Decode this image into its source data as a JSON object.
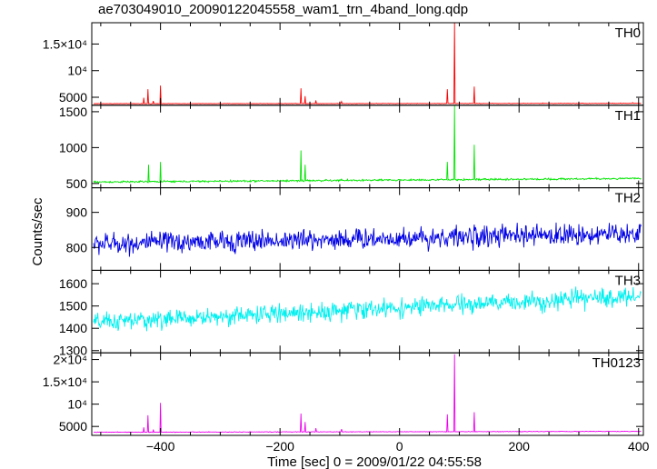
{
  "figure_title": "ae703049010_20090122045558_wam1_trn_4band_long.qdp",
  "chart_data": {
    "type": "line",
    "title": "ae703049010_20090122045558_wam1_trn_4band_long.qdp",
    "xlabel": "Time [sec] 0 = 2009/01/22 04:55:58",
    "ylabel": "Counts/sec",
    "xlim": [
      -515,
      408
    ],
    "x_ticks": [
      -400,
      -200,
      0,
      200,
      400
    ],
    "x_tick_labels": [
      "−400",
      "−200",
      "0",
      "200",
      "400"
    ],
    "grid": false,
    "x_step_sec": 1,
    "panels": [
      {
        "name": "TH0",
        "color": "#ff0000",
        "ylim": [
          3500,
          19000
        ],
        "y_ticks": [
          5000,
          10000,
          15000
        ],
        "y_tick_labels": [
          "5000",
          "10⁴",
          "1.5×10⁴"
        ],
        "baseline": {
          "start": 3800,
          "end": 3860,
          "noise": 40
        },
        "spikes": [
          [
            -428,
            4900
          ],
          [
            -421,
            6500
          ],
          [
            -412,
            4300
          ],
          [
            -400,
            7200
          ],
          [
            -165,
            6700
          ],
          [
            -158,
            5200
          ],
          [
            -140,
            4400
          ],
          [
            -97,
            4200
          ],
          [
            80,
            6500
          ],
          [
            92,
            19000
          ],
          [
            125,
            7000
          ],
          [
            240,
            3950
          ],
          [
            300,
            3950
          ],
          [
            390,
            4000
          ]
        ]
      },
      {
        "name": "TH1",
        "color": "#00e600",
        "ylim": [
          440,
          1590
        ],
        "y_ticks": [
          500,
          1000,
          1500
        ],
        "y_tick_labels": [
          "500",
          "1000",
          "1500"
        ],
        "baseline": {
          "start": 520,
          "end": 570,
          "noise": 12
        },
        "spikes": [
          [
            -420,
            760
          ],
          [
            -400,
            800
          ],
          [
            -165,
            960
          ],
          [
            -158,
            760
          ],
          [
            -97,
            560
          ],
          [
            80,
            800
          ],
          [
            92,
            1590
          ],
          [
            125,
            1040
          ]
        ]
      },
      {
        "name": "TH2",
        "color": "#0000e6",
        "ylim": [
          735,
          970
        ],
        "y_ticks": [
          800,
          900
        ],
        "y_tick_labels": [
          "800",
          "900"
        ],
        "baseline": {
          "start": 810,
          "end": 840,
          "noise": 28
        },
        "spikes": []
      },
      {
        "name": "TH3",
        "color": "#00f0f0",
        "ylim": [
          1290,
          1660
        ],
        "y_ticks": [
          1300,
          1400,
          1500,
          1600
        ],
        "y_tick_labels": [
          "1300",
          "1400",
          "1500",
          "1600"
        ],
        "baseline": {
          "start": 1425,
          "end": 1545,
          "noise": 38
        },
        "spikes": []
      },
      {
        "name": "TH0123",
        "color": "#ee00ee",
        "ylim": [
          3000,
          21500
        ],
        "y_ticks": [
          5000,
          10000,
          15000,
          20000
        ],
        "y_tick_labels": [
          "5000",
          "10⁴",
          "1.5×10⁴",
          "2×10⁴"
        ],
        "baseline": {
          "start": 3700,
          "end": 3900,
          "noise": 60
        },
        "spikes": [
          [
            -428,
            4800
          ],
          [
            -421,
            7500
          ],
          [
            -412,
            4300
          ],
          [
            -400,
            10300
          ],
          [
            -165,
            7900
          ],
          [
            -158,
            6000
          ],
          [
            -140,
            4600
          ],
          [
            -97,
            4400
          ],
          [
            80,
            7700
          ],
          [
            92,
            21200
          ],
          [
            125,
            8200
          ]
        ]
      }
    ]
  }
}
